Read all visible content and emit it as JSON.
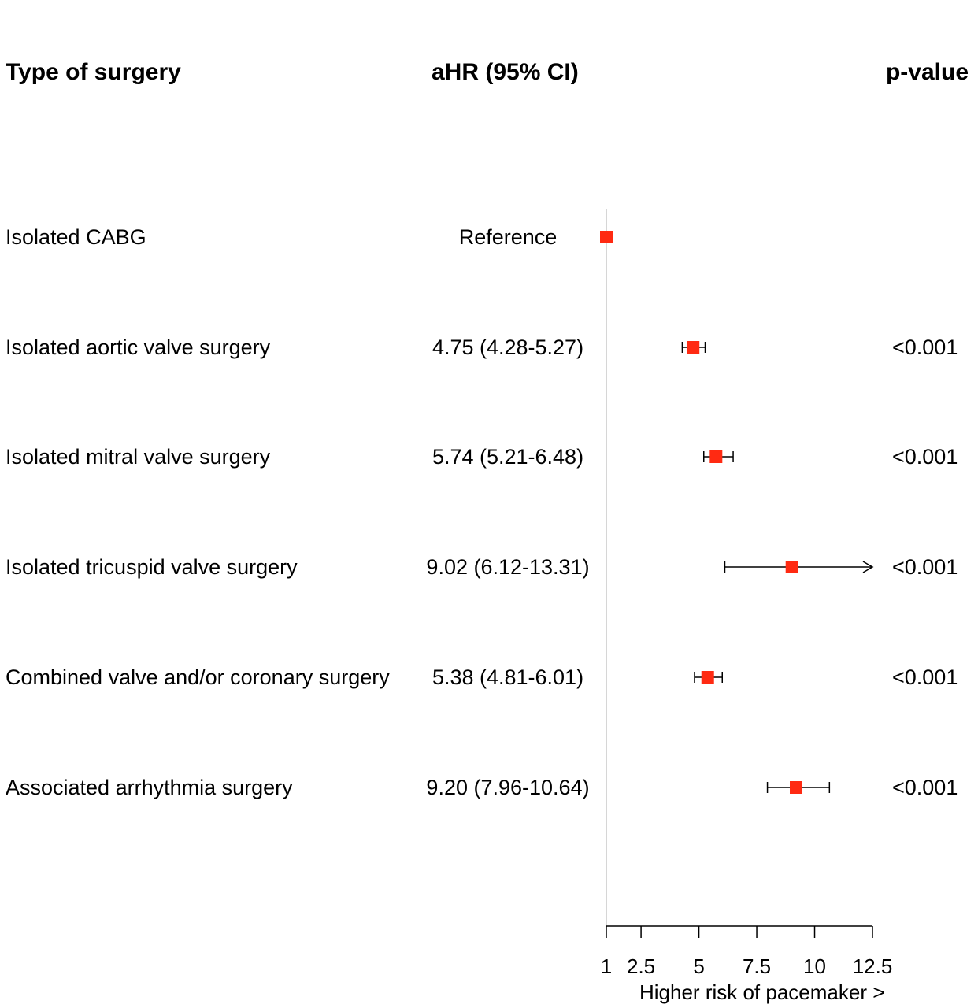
{
  "headers": {
    "type": "Type of surgery",
    "ahr": "aHR (95% CI)",
    "pvalue": "p-value"
  },
  "rows": [
    {
      "label": "Isolated CABG",
      "estimate_text": "Reference",
      "p": ""
    },
    {
      "label": "Isolated aortic valve surgery",
      "estimate_text": "4.75 (4.28-5.27)",
      "p": "<0.001"
    },
    {
      "label": "Isolated mitral valve surgery",
      "estimate_text": "5.74 (5.21-6.48)",
      "p": "<0.001"
    },
    {
      "label": "Isolated tricuspid valve surgery",
      "estimate_text": "9.02 (6.12-13.31)",
      "p": "<0.001"
    },
    {
      "label": "Combined valve and/or coronary surgery",
      "estimate_text": "5.38 (4.81-6.01)",
      "p": "<0.001"
    },
    {
      "label": "Associated arrhythmia surgery",
      "estimate_text": "9.20 (7.96-10.64)",
      "p": "<0.001"
    }
  ],
  "chart_data": {
    "type": "forest",
    "xlabel": "Higher risk of pacemaker >",
    "xlim": [
      1,
      12.5
    ],
    "ticks": [
      1,
      2.5,
      5,
      7.5,
      10,
      12.5
    ],
    "tick_labels": [
      "1",
      "2.5",
      "5",
      "7.5",
      "10",
      "12.5"
    ],
    "reference_value": 1,
    "marker_color": "#ff2a12",
    "series": [
      {
        "category": "Isolated CABG",
        "estimate": 1,
        "lower": null,
        "upper": null
      },
      {
        "category": "Isolated aortic valve surgery",
        "estimate": 4.75,
        "lower": 4.28,
        "upper": 5.27
      },
      {
        "category": "Isolated mitral valve surgery",
        "estimate": 5.74,
        "lower": 5.21,
        "upper": 6.48
      },
      {
        "category": "Isolated tricuspid valve surgery",
        "estimate": 9.02,
        "lower": 6.12,
        "upper": 13.31,
        "upper_truncated": true
      },
      {
        "category": "Combined valve and/or coronary surgery",
        "estimate": 5.38,
        "lower": 4.81,
        "upper": 6.01
      },
      {
        "category": "Associated arrhythmia surgery",
        "estimate": 9.2,
        "lower": 7.96,
        "upper": 10.64
      }
    ]
  }
}
